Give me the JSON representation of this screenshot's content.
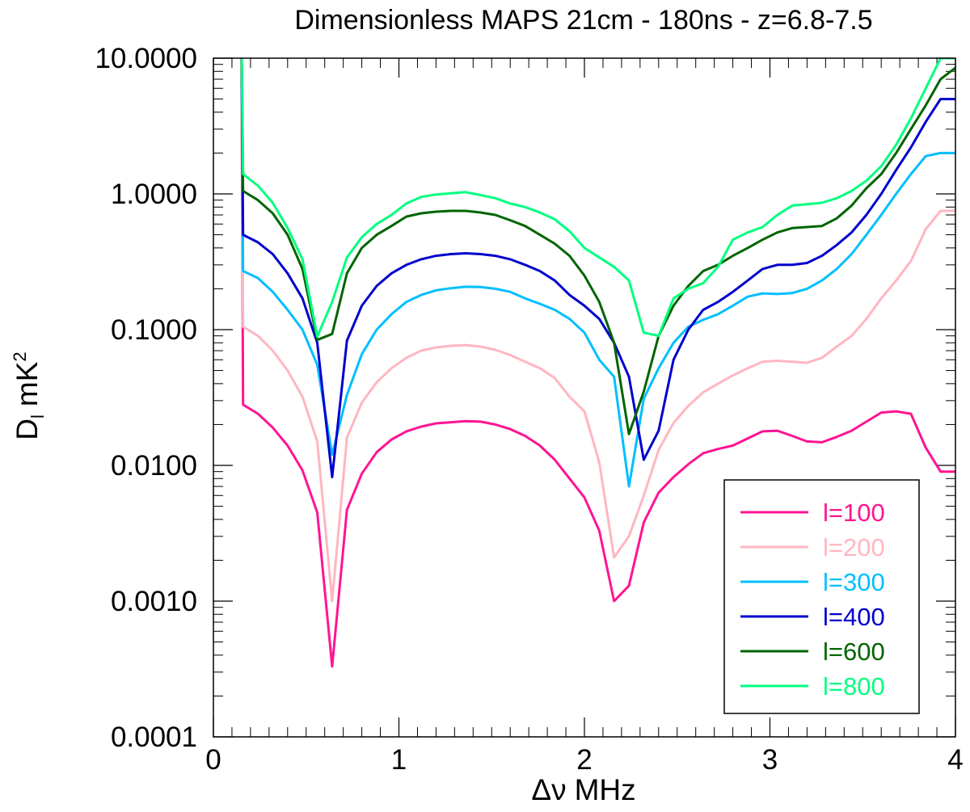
{
  "chart_data": {
    "type": "line",
    "title": "Dimensionless MAPS 21cm - 180ns - z=6.8-7.5",
    "xlabel_main": "Δν",
    "xlabel_unit": "MHz",
    "ylabel_main": "D",
    "ylabel_sub": "l",
    "ylabel_unit": "mK",
    "ylabel_sup": "2",
    "xlim": [
      0,
      4
    ],
    "ylim": [
      0.0001,
      10
    ],
    "yscale": "log",
    "grid": false,
    "legend_position": "bottom-right",
    "x_ticks": [
      "0",
      "1",
      "2",
      "3",
      "4"
    ],
    "y_ticks": [
      "0.0001",
      "0.0010",
      "0.0100",
      "0.1000",
      "1.0000",
      "10.0000"
    ],
    "x": [
      0.16,
      0.24,
      0.32,
      0.4,
      0.48,
      0.56,
      0.64,
      0.72,
      0.8,
      0.88,
      0.96,
      1.04,
      1.12,
      1.2,
      1.28,
      1.36,
      1.44,
      1.52,
      1.6,
      1.68,
      1.76,
      1.84,
      1.92,
      2.0,
      2.08,
      2.16,
      2.24,
      2.32,
      2.4,
      2.48,
      2.56,
      2.64,
      2.72,
      2.8,
      2.88,
      2.96,
      3.04,
      3.12,
      3.2,
      3.28,
      3.36,
      3.44,
      3.52,
      3.6,
      3.68,
      3.76,
      3.84,
      3.92,
      4.0
    ],
    "series": [
      {
        "name": "l=100",
        "color": "#ff1493",
        "values": [
          0.028,
          0.024,
          0.019,
          0.014,
          0.0092,
          0.0045,
          0.00033,
          0.0047,
          0.0087,
          0.0125,
          0.0155,
          0.0178,
          0.0193,
          0.0204,
          0.0208,
          0.0212,
          0.021,
          0.02,
          0.0185,
          0.0165,
          0.014,
          0.011,
          0.008,
          0.0058,
          0.0033,
          0.001,
          0.0013,
          0.0038,
          0.0063,
          0.0082,
          0.0102,
          0.0123,
          0.0132,
          0.014,
          0.0158,
          0.0178,
          0.018,
          0.0165,
          0.015,
          0.0148,
          0.0162,
          0.018,
          0.021,
          0.0245,
          0.025,
          0.024,
          0.0135,
          0.009,
          0.009
        ]
      },
      {
        "name": "l=200",
        "color": "#ffb6c1",
        "values": [
          0.105,
          0.09,
          0.07,
          0.05,
          0.032,
          0.015,
          0.001,
          0.016,
          0.029,
          0.041,
          0.052,
          0.062,
          0.07,
          0.074,
          0.076,
          0.077,
          0.075,
          0.071,
          0.065,
          0.058,
          0.052,
          0.044,
          0.032,
          0.025,
          0.0105,
          0.0021,
          0.003,
          0.006,
          0.013,
          0.0205,
          0.0275,
          0.0345,
          0.04,
          0.046,
          0.052,
          0.058,
          0.059,
          0.058,
          0.057,
          0.062,
          0.075,
          0.09,
          0.12,
          0.17,
          0.23,
          0.32,
          0.55,
          0.75,
          0.75
        ]
      },
      {
        "name": "l=300",
        "color": "#00bfff",
        "values": [
          0.27,
          0.24,
          0.19,
          0.14,
          0.1,
          0.055,
          0.012,
          0.033,
          0.066,
          0.1,
          0.13,
          0.16,
          0.18,
          0.195,
          0.202,
          0.207,
          0.206,
          0.2,
          0.19,
          0.17,
          0.155,
          0.14,
          0.12,
          0.095,
          0.06,
          0.045,
          0.007,
          0.031,
          0.052,
          0.08,
          0.105,
          0.118,
          0.13,
          0.15,
          0.175,
          0.185,
          0.183,
          0.186,
          0.2,
          0.23,
          0.28,
          0.36,
          0.5,
          0.7,
          1.0,
          1.4,
          1.9,
          2.0,
          2.0
        ]
      },
      {
        "name": "l=400",
        "color": "#0000cd",
        "values": [
          0.5,
          0.44,
          0.36,
          0.26,
          0.17,
          0.08,
          0.0082,
          0.083,
          0.15,
          0.21,
          0.26,
          0.3,
          0.33,
          0.35,
          0.36,
          0.365,
          0.36,
          0.35,
          0.33,
          0.3,
          0.27,
          0.23,
          0.18,
          0.15,
          0.12,
          0.08,
          0.045,
          0.011,
          0.018,
          0.06,
          0.1,
          0.14,
          0.16,
          0.19,
          0.23,
          0.28,
          0.3,
          0.3,
          0.31,
          0.35,
          0.42,
          0.52,
          0.7,
          1.0,
          1.5,
          2.2,
          3.4,
          5.0,
          5.0
        ]
      },
      {
        "name": "l=600",
        "color": "#006400",
        "values": [
          1.05,
          0.9,
          0.72,
          0.5,
          0.28,
          0.084,
          0.093,
          0.26,
          0.4,
          0.5,
          0.58,
          0.68,
          0.72,
          0.74,
          0.75,
          0.75,
          0.73,
          0.7,
          0.64,
          0.58,
          0.5,
          0.43,
          0.35,
          0.25,
          0.16,
          0.08,
          0.017,
          0.035,
          0.09,
          0.15,
          0.21,
          0.27,
          0.3,
          0.35,
          0.4,
          0.46,
          0.52,
          0.56,
          0.57,
          0.58,
          0.66,
          0.82,
          1.1,
          1.4,
          2.0,
          3.0,
          4.5,
          7.0,
          8.5
        ]
      },
      {
        "name": "l=800",
        "color": "#00ff7f",
        "values": [
          1.4,
          1.15,
          0.86,
          0.56,
          0.33,
          0.089,
          0.16,
          0.34,
          0.48,
          0.6,
          0.7,
          0.85,
          0.95,
          0.99,
          1.01,
          1.03,
          0.98,
          0.93,
          0.85,
          0.8,
          0.73,
          0.65,
          0.53,
          0.4,
          0.34,
          0.29,
          0.23,
          0.095,
          0.09,
          0.17,
          0.2,
          0.22,
          0.29,
          0.46,
          0.52,
          0.57,
          0.7,
          0.82,
          0.84,
          0.86,
          0.93,
          1.05,
          1.25,
          1.6,
          2.3,
          3.6,
          6.0,
          10.0,
          10.0
        ]
      }
    ]
  }
}
